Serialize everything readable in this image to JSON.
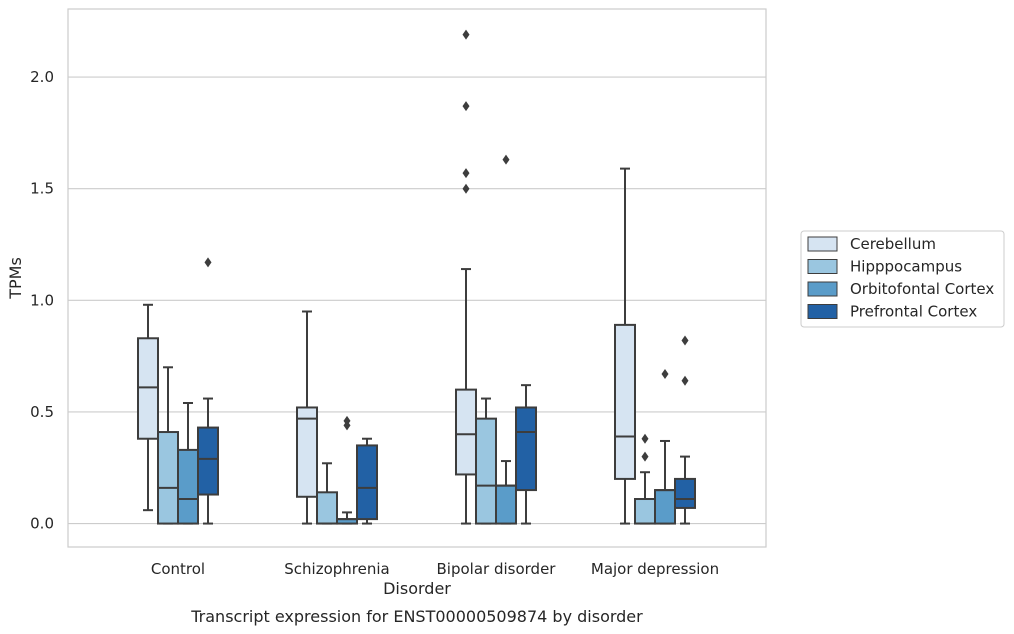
{
  "caption": "Transcript expression for ENST00000509874 by disorder",
  "chart_data": {
    "type": "box",
    "title": "",
    "xlabel": "Disorder",
    "ylabel": "TPMs",
    "ylim": [
      -0.105,
      2.305
    ],
    "yticks": [
      0.0,
      0.5,
      1.0,
      1.5,
      2.0
    ],
    "ytick_labels": [
      "0.0",
      "0.5",
      "1.0",
      "1.5",
      "2.0"
    ],
    "grid": "horizontal",
    "legend_position": "right",
    "categories": [
      "Control",
      "Schizophrenia",
      "Bipolar disorder",
      "Major depression"
    ],
    "series": [
      {
        "name": "Cerebellum",
        "color": "#d6e4f2",
        "boxes": [
          {
            "whislo": 0.06,
            "q1": 0.38,
            "med": 0.61,
            "q3": 0.83,
            "whishi": 0.98,
            "fliers": []
          },
          {
            "whislo": 0.0,
            "q1": 0.12,
            "med": 0.47,
            "q3": 0.52,
            "whishi": 0.95,
            "fliers": []
          },
          {
            "whislo": 0.0,
            "q1": 0.22,
            "med": 0.4,
            "q3": 0.6,
            "whishi": 1.14,
            "fliers": [
              1.5,
              1.57,
              1.87,
              2.19
            ]
          },
          {
            "whislo": 0.0,
            "q1": 0.2,
            "med": 0.39,
            "q3": 0.89,
            "whishi": 1.59,
            "fliers": []
          }
        ]
      },
      {
        "name": "Hipppocampus",
        "color": "#9ac6e0",
        "boxes": [
          {
            "whislo": 0.0,
            "q1": 0.0,
            "med": 0.16,
            "q3": 0.41,
            "whishi": 0.7,
            "fliers": []
          },
          {
            "whislo": 0.0,
            "q1": 0.0,
            "med": 0.0,
            "q3": 0.14,
            "whishi": 0.27,
            "fliers": []
          },
          {
            "whislo": 0.0,
            "q1": 0.0,
            "med": 0.17,
            "q3": 0.47,
            "whishi": 0.56,
            "fliers": []
          },
          {
            "whislo": 0.0,
            "q1": 0.0,
            "med": 0.0,
            "q3": 0.11,
            "whishi": 0.23,
            "fliers": [
              0.3,
              0.38
            ]
          }
        ]
      },
      {
        "name": "Orbitofontal Cortex",
        "color": "#5a9cc9",
        "boxes": [
          {
            "whislo": 0.0,
            "q1": 0.0,
            "med": 0.11,
            "q3": 0.33,
            "whishi": 0.54,
            "fliers": []
          },
          {
            "whislo": 0.0,
            "q1": 0.0,
            "med": 0.02,
            "q3": 0.02,
            "whishi": 0.05,
            "fliers": [
              0.44,
              0.46
            ]
          },
          {
            "whislo": 0.0,
            "q1": 0.0,
            "med": 0.17,
            "q3": 0.17,
            "whishi": 0.28,
            "fliers": [
              1.63
            ]
          },
          {
            "whislo": 0.0,
            "q1": 0.0,
            "med": 0.15,
            "q3": 0.15,
            "whishi": 0.37,
            "fliers": [
              0.67
            ]
          }
        ]
      },
      {
        "name": "Prefrontal Cortex",
        "color": "#2261a5",
        "boxes": [
          {
            "whislo": 0.0,
            "q1": 0.13,
            "med": 0.29,
            "q3": 0.43,
            "whishi": 0.56,
            "fliers": [
              1.17
            ]
          },
          {
            "whislo": 0.0,
            "q1": 0.02,
            "med": 0.16,
            "q3": 0.35,
            "whishi": 0.38,
            "fliers": []
          },
          {
            "whislo": 0.0,
            "q1": 0.15,
            "med": 0.41,
            "q3": 0.52,
            "whishi": 0.62,
            "fliers": []
          },
          {
            "whislo": 0.0,
            "q1": 0.07,
            "med": 0.11,
            "q3": 0.2,
            "whishi": 0.3,
            "fliers": [
              0.64,
              0.82
            ]
          }
        ]
      }
    ]
  }
}
